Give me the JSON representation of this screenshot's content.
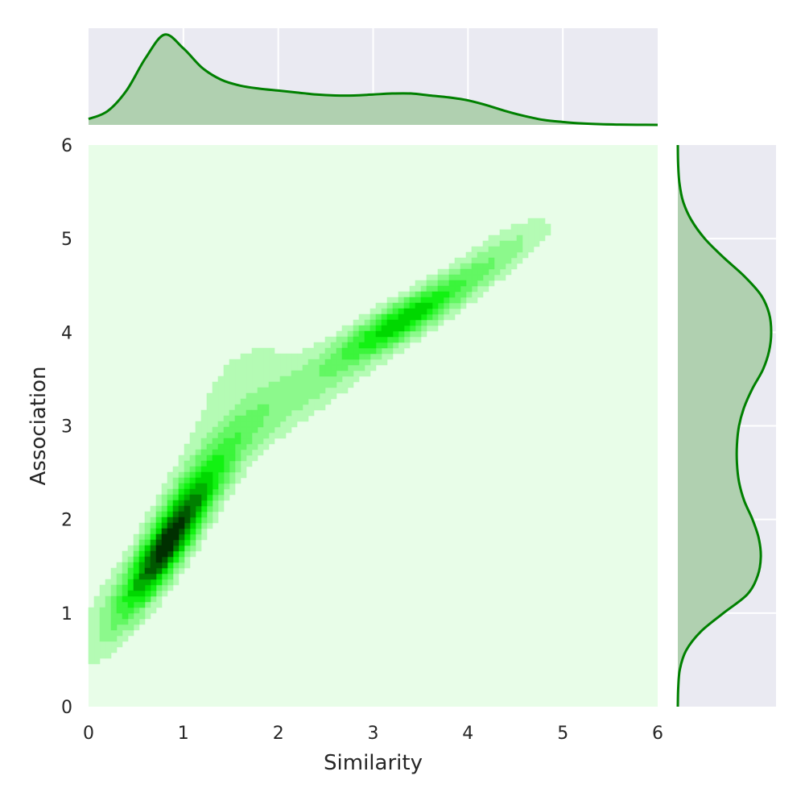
{
  "chart_data": {
    "type": "jointplot-kde",
    "xlabel": "Similarity",
    "ylabel": "Association",
    "xlim": [
      0,
      6
    ],
    "ylim": [
      0,
      6
    ],
    "xticks": [
      "0",
      "1",
      "2",
      "3",
      "4",
      "5",
      "6"
    ],
    "yticks": [
      "0",
      "1",
      "2",
      "3",
      "4",
      "5",
      "6"
    ],
    "grid": true,
    "colors": {
      "line": "#008000",
      "marginal_fill": "#b0d0b0",
      "marginal_background": "#eaeaf2",
      "grid": "#ffffff",
      "joint_background": "#e8fde8",
      "levels": [
        "#b4fbb4",
        "#8cf98c",
        "#63f763",
        "#3bf53b",
        "#12f212",
        "#00d800",
        "#00b000",
        "#008000",
        "#005800",
        "#003000"
      ]
    },
    "joint_kde_components": [
      {
        "mx": 0.82,
        "my": 1.72,
        "sx": 0.34,
        "sy": 0.52,
        "rho": 0.88,
        "w": 0.36
      },
      {
        "mx": 1.35,
        "my": 2.6,
        "sx": 0.45,
        "sy": 0.55,
        "rho": 0.85,
        "w": 0.14
      },
      {
        "mx": 2.35,
        "my": 3.4,
        "sx": 0.6,
        "sy": 0.45,
        "rho": 0.85,
        "w": 0.12
      },
      {
        "mx": 3.35,
        "my": 4.15,
        "sx": 0.5,
        "sy": 0.32,
        "rho": 0.88,
        "w": 0.2
      },
      {
        "mx": 4.35,
        "my": 4.85,
        "sx": 0.4,
        "sy": 0.28,
        "rho": 0.8,
        "w": 0.06
      },
      {
        "mx": 1.55,
        "my": 3.55,
        "sx": 0.55,
        "sy": 0.55,
        "rho": 0.75,
        "w": 0.09
      },
      {
        "mx": 0.12,
        "my": 0.95,
        "sx": 0.22,
        "sy": 0.38,
        "rho": 0.55,
        "w": 0.03
      }
    ],
    "marginal_x": {
      "x": [
        0.0,
        0.2,
        0.4,
        0.6,
        0.8,
        1.0,
        1.2,
        1.4,
        1.6,
        1.8,
        2.0,
        2.2,
        2.4,
        2.6,
        2.8,
        3.0,
        3.2,
        3.4,
        3.6,
        3.8,
        4.0,
        4.2,
        4.4,
        4.6,
        4.8,
        5.0,
        5.2,
        5.4,
        5.6,
        5.8,
        6.0
      ],
      "density": [
        0.06,
        0.14,
        0.35,
        0.68,
        0.92,
        0.78,
        0.58,
        0.46,
        0.4,
        0.37,
        0.35,
        0.33,
        0.31,
        0.3,
        0.3,
        0.31,
        0.32,
        0.32,
        0.3,
        0.28,
        0.25,
        0.2,
        0.14,
        0.09,
        0.05,
        0.03,
        0.015,
        0.007,
        0.003,
        0.001,
        0.0
      ]
    },
    "marginal_y": {
      "y": [
        0.0,
        0.2,
        0.4,
        0.6,
        0.8,
        1.0,
        1.2,
        1.4,
        1.6,
        1.8,
        2.0,
        2.2,
        2.4,
        2.6,
        2.8,
        3.0,
        3.2,
        3.4,
        3.6,
        3.8,
        4.0,
        4.2,
        4.4,
        4.6,
        4.8,
        5.0,
        5.2,
        5.4,
        5.6,
        5.8,
        6.0
      ],
      "density": [
        0.0,
        0.004,
        0.02,
        0.08,
        0.22,
        0.44,
        0.67,
        0.77,
        0.8,
        0.78,
        0.72,
        0.64,
        0.59,
        0.57,
        0.57,
        0.59,
        0.64,
        0.72,
        0.82,
        0.88,
        0.9,
        0.88,
        0.8,
        0.64,
        0.44,
        0.26,
        0.13,
        0.05,
        0.015,
        0.003,
        0.0
      ]
    }
  }
}
